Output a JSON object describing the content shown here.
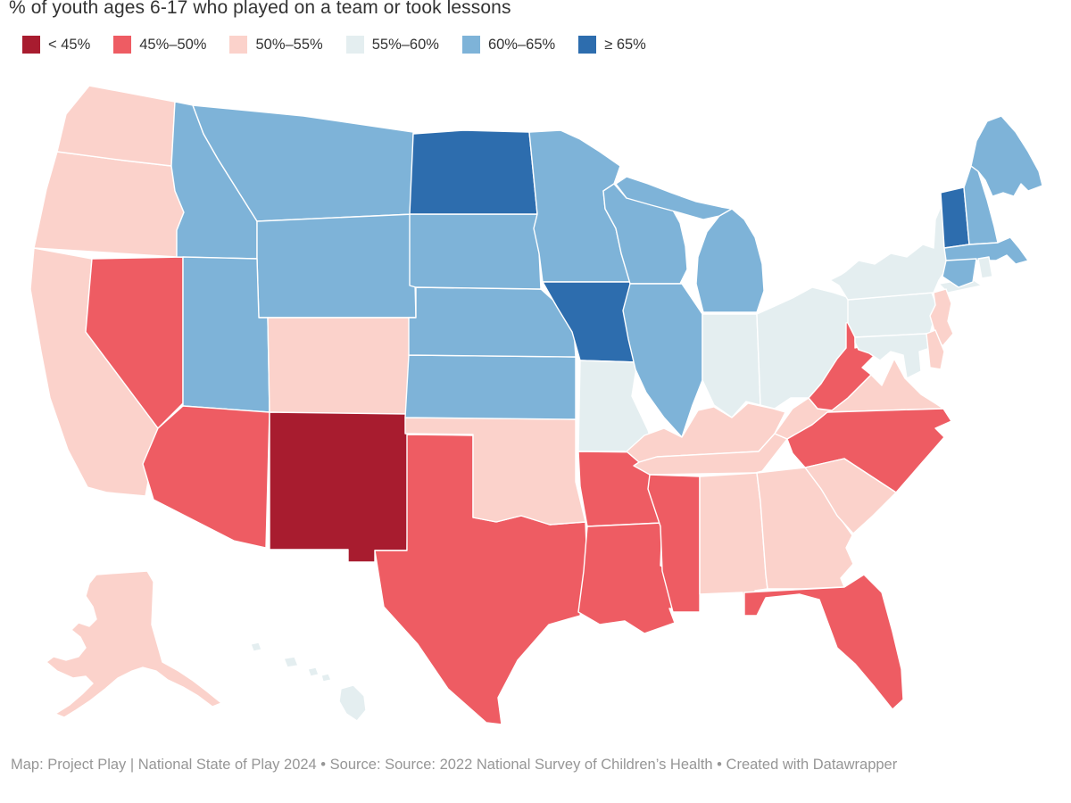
{
  "title": "% of youth ages 6-17 who played on a team or took lessons",
  "legend": {
    "items": [
      {
        "label": "< 45%",
        "color": "#a81c2f"
      },
      {
        "label": "45%–50%",
        "color": "#ee5c63"
      },
      {
        "label": "50%–55%",
        "color": "#fbd2cb"
      },
      {
        "label": "55%–60%",
        "color": "#e4eef0"
      },
      {
        "label": "60%–65%",
        "color": "#7eb3d8"
      },
      {
        "label": "≥ 65%",
        "color": "#2d6dae"
      }
    ]
  },
  "map": {
    "type": "choropleth-usa",
    "states": [
      {
        "id": "CA",
        "name": "California",
        "bucket": 2
      },
      {
        "id": "OR",
        "name": "Oregon",
        "bucket": 2
      },
      {
        "id": "WA",
        "name": "Washington",
        "bucket": 2
      },
      {
        "id": "NV",
        "name": "Nevada",
        "bucket": 1
      },
      {
        "id": "ID",
        "name": "Idaho",
        "bucket": 4
      },
      {
        "id": "MT",
        "name": "Montana",
        "bucket": 4
      },
      {
        "id": "WY",
        "name": "Wyoming",
        "bucket": 4
      },
      {
        "id": "UT",
        "name": "Utah",
        "bucket": 4
      },
      {
        "id": "CO",
        "name": "Colorado",
        "bucket": 2
      },
      {
        "id": "AZ",
        "name": "Arizona",
        "bucket": 1
      },
      {
        "id": "NM",
        "name": "New Mexico",
        "bucket": 0
      },
      {
        "id": "TX",
        "name": "Texas",
        "bucket": 1
      },
      {
        "id": "OK",
        "name": "Oklahoma",
        "bucket": 2
      },
      {
        "id": "KS",
        "name": "Kansas",
        "bucket": 4
      },
      {
        "id": "NE",
        "name": "Nebraska",
        "bucket": 4
      },
      {
        "id": "SD",
        "name": "South Dakota",
        "bucket": 4
      },
      {
        "id": "ND",
        "name": "North Dakota",
        "bucket": 5
      },
      {
        "id": "MN",
        "name": "Minnesota",
        "bucket": 4
      },
      {
        "id": "IA",
        "name": "Iowa",
        "bucket": 5
      },
      {
        "id": "MO",
        "name": "Missouri",
        "bucket": 3
      },
      {
        "id": "AR",
        "name": "Arkansas",
        "bucket": 1
      },
      {
        "id": "LA",
        "name": "Louisiana",
        "bucket": 1
      },
      {
        "id": "WI",
        "name": "Wisconsin",
        "bucket": 4
      },
      {
        "id": "IL",
        "name": "Illinois",
        "bucket": 4
      },
      {
        "id": "MI",
        "name": "Michigan",
        "bucket": 4
      },
      {
        "id": "IN",
        "name": "Indiana",
        "bucket": 3
      },
      {
        "id": "OH",
        "name": "Ohio",
        "bucket": 3
      },
      {
        "id": "KY",
        "name": "Kentucky",
        "bucket": 2
      },
      {
        "id": "TN",
        "name": "Tennessee",
        "bucket": 2
      },
      {
        "id": "MS",
        "name": "Mississippi",
        "bucket": 1
      },
      {
        "id": "AL",
        "name": "Alabama",
        "bucket": 2
      },
      {
        "id": "GA",
        "name": "Georgia",
        "bucket": 2
      },
      {
        "id": "FL",
        "name": "Florida",
        "bucket": 1
      },
      {
        "id": "VA",
        "name": "Virginia",
        "bucket": 2
      },
      {
        "id": "NC",
        "name": "North Carolina",
        "bucket": 1
      },
      {
        "id": "SC",
        "name": "South Carolina",
        "bucket": 2
      },
      {
        "id": "WV",
        "name": "West Virginia",
        "bucket": 1
      },
      {
        "id": "PA",
        "name": "Pennsylvania",
        "bucket": 3
      },
      {
        "id": "NY",
        "name": "New York",
        "bucket": 3
      },
      {
        "id": "NJ",
        "name": "New Jersey",
        "bucket": 2
      },
      {
        "id": "MD",
        "name": "Maryland",
        "bucket": 3
      },
      {
        "id": "DE",
        "name": "Delaware",
        "bucket": 2
      },
      {
        "id": "VT",
        "name": "Vermont",
        "bucket": 5
      },
      {
        "id": "NH",
        "name": "New Hampshire",
        "bucket": 4
      },
      {
        "id": "ME",
        "name": "Maine",
        "bucket": 4
      },
      {
        "id": "MA",
        "name": "Massachusetts",
        "bucket": 4
      },
      {
        "id": "CT",
        "name": "Connecticut",
        "bucket": 4
      },
      {
        "id": "RI",
        "name": "Rhode Island",
        "bucket": 3
      },
      {
        "id": "AK",
        "name": "Alaska",
        "bucket": 2
      },
      {
        "id": "HI",
        "name": "Hawaii",
        "bucket": 3
      }
    ]
  },
  "footer": {
    "text": "Map: Project Play | National State of Play 2024 • Source: Source: 2022 National Survey of Children’s Health • Created with Datawrapper"
  }
}
